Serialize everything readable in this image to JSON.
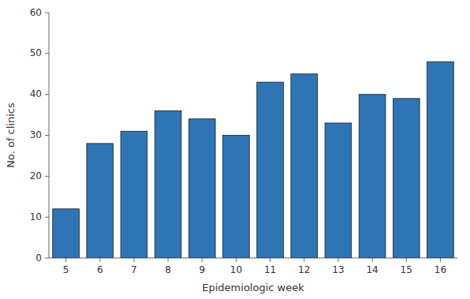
{
  "chart_data": {
    "type": "bar",
    "categories": [
      "5",
      "6",
      "7",
      "8",
      "9",
      "10",
      "11",
      "12",
      "13",
      "14",
      "15",
      "16"
    ],
    "values": [
      12,
      28,
      31,
      36,
      34,
      30,
      43,
      45,
      33,
      40,
      39,
      48
    ],
    "color": "#2e75b6",
    "xlabel": "Epidemiologic week",
    "ylabel": "No. of clinics",
    "ylim": [
      0,
      60
    ],
    "yticks": [
      0,
      10,
      20,
      30,
      40,
      50,
      60
    ],
    "grid": false
  }
}
